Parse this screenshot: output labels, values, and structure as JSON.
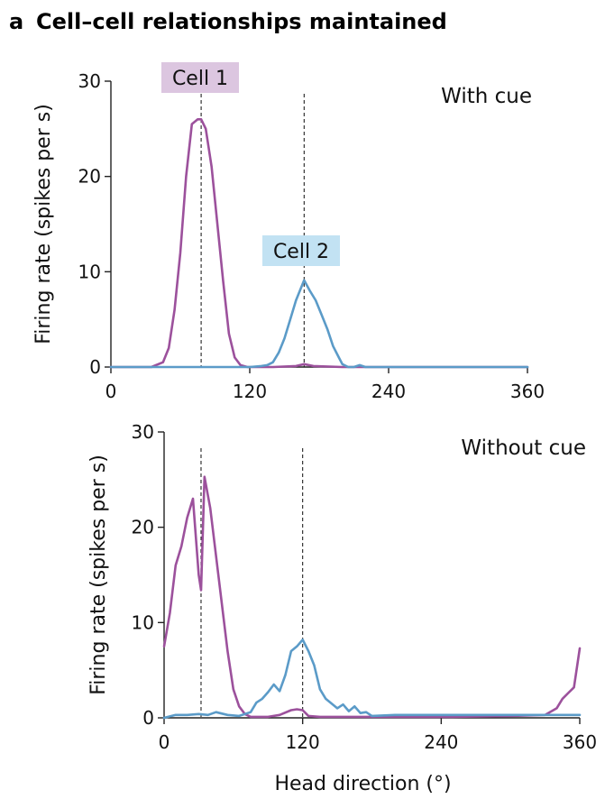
{
  "figure": {
    "panel_letter": "a",
    "panel_title": "Cell–cell relationships maintained"
  },
  "colors": {
    "cell1": "#9c519c",
    "cell2": "#5b9bc8",
    "cell1_label_bg": "#dcc6e0",
    "cell2_label_bg": "#c2e2f3"
  },
  "chart_data": [
    {
      "type": "line",
      "title": "With cue",
      "xlabel": "",
      "ylabel": "Firing rate (spikes per s)",
      "xlim": [
        0,
        360
      ],
      "ylim": [
        0,
        30
      ],
      "xticks": [
        0,
        120,
        240,
        360
      ],
      "yticks": [
        0,
        10,
        20,
        30
      ],
      "reference_lines": [
        {
          "x": 78,
          "label": "Cell 1",
          "series": "cell1"
        },
        {
          "x": 167,
          "label": "Cell 2",
          "series": "cell2"
        }
      ],
      "series": [
        {
          "name": "Cell 1",
          "color_key": "cell1",
          "x": [
            0,
            35,
            45,
            50,
            55,
            60,
            65,
            70,
            75,
            78,
            82,
            87,
            92,
            97,
            102,
            107,
            112,
            118,
            125,
            140,
            160,
            167,
            175,
            200,
            240,
            300,
            360
          ],
          "y": [
            0,
            0,
            0.5,
            2,
            6,
            12,
            20,
            25.5,
            26,
            26,
            25,
            21,
            15,
            9,
            3.5,
            1,
            0.2,
            0,
            0,
            0,
            0.1,
            0.3,
            0.1,
            0,
            0,
            0,
            0
          ]
        },
        {
          "name": "Cell 2",
          "color_key": "cell2",
          "x": [
            0,
            120,
            130,
            135,
            140,
            145,
            150,
            155,
            160,
            167,
            172,
            177,
            182,
            187,
            192,
            197,
            200,
            205,
            210,
            215,
            220,
            240,
            300,
            360
          ],
          "y": [
            0,
            0,
            0.1,
            0.2,
            0.5,
            1.5,
            3,
            5,
            7,
            9.1,
            8,
            7,
            5.5,
            4,
            2.2,
            1,
            0.3,
            0,
            0,
            0.2,
            0,
            0,
            0,
            0
          ]
        }
      ]
    },
    {
      "type": "line",
      "title": "Without cue",
      "xlabel": "Head direction (°)",
      "ylabel": "Firing rate (spikes per s)",
      "xlim": [
        0,
        360
      ],
      "ylim": [
        0,
        30
      ],
      "xticks": [
        0,
        120,
        240,
        360
      ],
      "yticks": [
        0,
        10,
        20,
        30
      ],
      "reference_lines": [
        {
          "x": 32,
          "series": "cell1"
        },
        {
          "x": 120,
          "series": "cell2"
        }
      ],
      "series": [
        {
          "name": "Cell 1",
          "color_key": "cell1",
          "x": [
            0,
            5,
            10,
            15,
            20,
            25,
            30,
            32,
            35,
            40,
            45,
            50,
            55,
            60,
            65,
            70,
            75,
            80,
            90,
            100,
            110,
            115,
            120,
            125,
            135,
            160,
            200,
            250,
            300,
            330,
            340,
            345,
            350,
            355,
            360
          ],
          "y": [
            7.5,
            11,
            16,
            18,
            21,
            23,
            15,
            13.4,
            25.3,
            22,
            17,
            12,
            7,
            3,
            1.2,
            0.4,
            0.1,
            0.1,
            0.1,
            0.3,
            0.8,
            0.9,
            0.8,
            0.2,
            0.1,
            0.1,
            0.1,
            0.1,
            0.2,
            0.3,
            1,
            2,
            2.6,
            3.2,
            7.3
          ]
        },
        {
          "name": "Cell 2",
          "color_key": "cell2",
          "x": [
            0,
            10,
            20,
            30,
            38,
            45,
            55,
            65,
            75,
            80,
            85,
            90,
            95,
            100,
            105,
            110,
            115,
            120,
            125,
            130,
            135,
            140,
            145,
            150,
            155,
            160,
            165,
            170,
            175,
            180,
            200,
            240,
            300,
            360
          ],
          "y": [
            0,
            0.3,
            0.3,
            0.4,
            0.3,
            0.6,
            0.3,
            0.2,
            0.6,
            1.6,
            2,
            2.7,
            3.5,
            2.8,
            4.5,
            7,
            7.5,
            8.2,
            7,
            5.5,
            3,
            2,
            1.5,
            1,
            1.4,
            0.7,
            1.2,
            0.5,
            0.6,
            0.2,
            0.3,
            0.3,
            0.3,
            0.3
          ]
        }
      ]
    }
  ]
}
